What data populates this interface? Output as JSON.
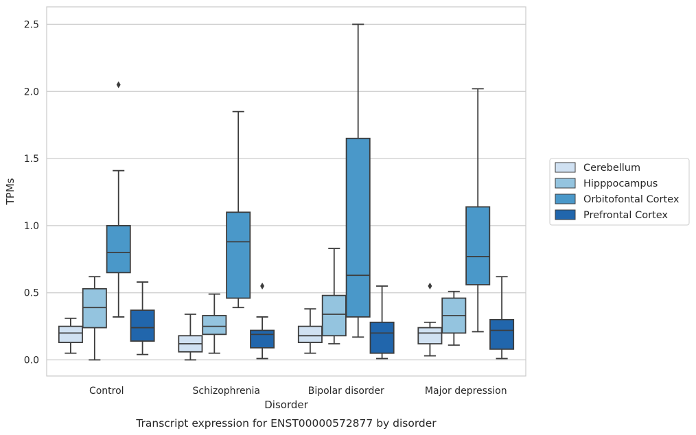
{
  "chart_data": {
    "type": "box",
    "title": "Transcript expression for ENST00000572877 by disorder",
    "xlabel": "Disorder",
    "ylabel": "TPMs",
    "ylim": [
      -0.12,
      2.63
    ],
    "yticks": [
      "0.0",
      "0.5",
      "1.0",
      "1.5",
      "2.0",
      "2.5"
    ],
    "grid": "horizontal",
    "legend_position": "right",
    "categories": [
      "Control",
      "Schizophrenia",
      "Bipolar disorder",
      "Major depression"
    ],
    "series": [
      {
        "name": "Cerebellum",
        "color": "#d0e1f2",
        "boxes": [
          {
            "whisker_low": 0.05,
            "q1": 0.13,
            "median": 0.2,
            "q3": 0.25,
            "whisker_high": 0.31,
            "outliers": []
          },
          {
            "whisker_low": 0.0,
            "q1": 0.06,
            "median": 0.12,
            "q3": 0.18,
            "whisker_high": 0.34,
            "outliers": []
          },
          {
            "whisker_low": 0.05,
            "q1": 0.13,
            "median": 0.18,
            "q3": 0.25,
            "whisker_high": 0.38,
            "outliers": []
          },
          {
            "whisker_low": 0.03,
            "q1": 0.12,
            "median": 0.2,
            "q3": 0.24,
            "whisker_high": 0.28,
            "outliers": [
              0.55
            ]
          }
        ]
      },
      {
        "name": "Hipppocampus",
        "color": "#94c4df",
        "boxes": [
          {
            "whisker_low": 0.0,
            "q1": 0.24,
            "median": 0.39,
            "q3": 0.53,
            "whisker_high": 0.62,
            "outliers": []
          },
          {
            "whisker_low": 0.05,
            "q1": 0.19,
            "median": 0.25,
            "q3": 0.33,
            "whisker_high": 0.49,
            "outliers": []
          },
          {
            "whisker_low": 0.12,
            "q1": 0.18,
            "median": 0.34,
            "q3": 0.48,
            "whisker_high": 0.83,
            "outliers": []
          },
          {
            "whisker_low": 0.11,
            "q1": 0.2,
            "median": 0.33,
            "q3": 0.46,
            "whisker_high": 0.51,
            "outliers": []
          }
        ]
      },
      {
        "name": "Orbitofontal Cortex",
        "color": "#4a98c9",
        "boxes": [
          {
            "whisker_low": 0.32,
            "q1": 0.65,
            "median": 0.8,
            "q3": 1.0,
            "whisker_high": 1.41,
            "outliers": [
              2.05
            ]
          },
          {
            "whisker_low": 0.39,
            "q1": 0.46,
            "median": 0.88,
            "q3": 1.1,
            "whisker_high": 1.85,
            "outliers": []
          },
          {
            "whisker_low": 0.17,
            "q1": 0.32,
            "median": 0.63,
            "q3": 1.65,
            "whisker_high": 2.5,
            "outliers": []
          },
          {
            "whisker_low": 0.21,
            "q1": 0.56,
            "median": 0.77,
            "q3": 1.14,
            "whisker_high": 2.02,
            "outliers": []
          }
        ]
      },
      {
        "name": "Prefrontal Cortex",
        "color": "#2166ac",
        "boxes": [
          {
            "whisker_low": 0.04,
            "q1": 0.14,
            "median": 0.24,
            "q3": 0.37,
            "whisker_high": 0.58,
            "outliers": []
          },
          {
            "whisker_low": 0.01,
            "q1": 0.09,
            "median": 0.19,
            "q3": 0.22,
            "whisker_high": 0.32,
            "outliers": [
              0.55
            ]
          },
          {
            "whisker_low": 0.01,
            "q1": 0.05,
            "median": 0.2,
            "q3": 0.28,
            "whisker_high": 0.55,
            "outliers": []
          },
          {
            "whisker_low": 0.01,
            "q1": 0.08,
            "median": 0.22,
            "q3": 0.3,
            "whisker_high": 0.62,
            "outliers": []
          }
        ]
      }
    ]
  }
}
